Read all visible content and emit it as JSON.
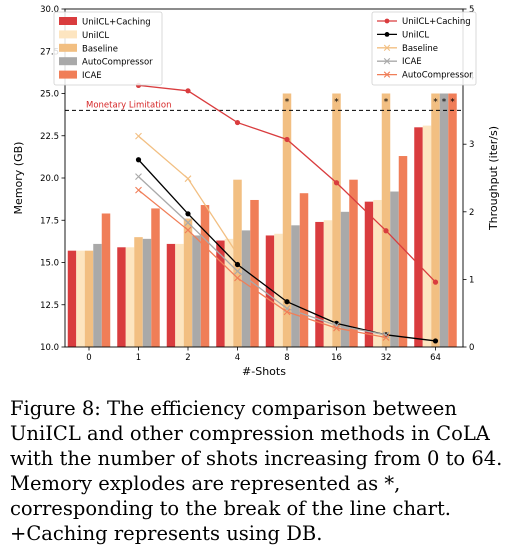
{
  "chart_data": {
    "type": "bar",
    "xlabel": "#-Shots",
    "ylabel": "Memory (GB)",
    "y2label": "Throughput (iter/s)",
    "categories": [
      "0",
      "1",
      "2",
      "4",
      "8",
      "16",
      "32",
      "64"
    ],
    "ylim": [
      10.0,
      30.0
    ],
    "y_ticks": [
      "10.0",
      "12.5",
      "15.0",
      "17.5",
      "20.0",
      "22.5",
      "25.0",
      "27.5",
      "30.0"
    ],
    "y2lim": [
      0,
      5
    ],
    "y2_ticks": [
      "0",
      "1",
      "2",
      "3",
      "4",
      "5"
    ],
    "limit_line": {
      "value": 24.0,
      "label": "Monetary Limitation",
      "color": "#d62728"
    },
    "explode_marker": "*",
    "bar_series": [
      {
        "name": "UniICL+Caching",
        "color": "#d93c3e",
        "values": [
          15.7,
          15.9,
          16.1,
          16.3,
          16.6,
          17.4,
          18.6,
          23.0
        ]
      },
      {
        "name": "UniICL",
        "color": "#fde5c0",
        "values": [
          15.7,
          15.9,
          16.1,
          16.4,
          16.7,
          17.5,
          18.7,
          23.1
        ]
      },
      {
        "name": "Baseline",
        "color": "#f2bf82",
        "values": [
          15.7,
          16.5,
          17.6,
          19.9,
          null,
          null,
          null,
          null
        ]
      },
      {
        "name": "AutoCompressor",
        "color": "#a9a9a9",
        "values": [
          16.1,
          16.4,
          16.6,
          16.9,
          17.2,
          18.0,
          19.2,
          null
        ]
      },
      {
        "name": "ICAE",
        "color": "#f07e58",
        "values": [
          17.9,
          18.2,
          18.4,
          18.7,
          19.1,
          19.9,
          21.3,
          null
        ]
      }
    ],
    "exploded": [
      {
        "category": "8",
        "series": "Baseline"
      },
      {
        "category": "16",
        "series": "Baseline"
      },
      {
        "category": "32",
        "series": "Baseline"
      },
      {
        "category": "64",
        "series": "Baseline"
      },
      {
        "category": "64",
        "series": "AutoCompressor"
      },
      {
        "category": "64",
        "series": "ICAE"
      }
    ],
    "line_series": [
      {
        "name": "UniICL+Caching",
        "color": "#d93c3e",
        "marker": "circle",
        "x": [
          "1",
          "2",
          "4",
          "8",
          "16",
          "32",
          "64"
        ],
        "values": [
          3.87,
          3.79,
          3.32,
          3.07,
          2.43,
          1.72,
          0.96
        ]
      },
      {
        "name": "UniICL",
        "color": "#000000",
        "marker": "circle",
        "x": [
          "1",
          "2",
          "4",
          "8",
          "16",
          "32",
          "64"
        ],
        "values": [
          2.77,
          1.97,
          1.22,
          0.67,
          0.35,
          0.18,
          0.09
        ]
      },
      {
        "name": "Baseline",
        "color": "#f2bf82",
        "marker": "x",
        "x": [
          "1",
          "2",
          "4"
        ],
        "values": [
          3.12,
          2.49,
          1.37
        ]
      },
      {
        "name": "ICAE",
        "color": "#a9a9a9",
        "marker": "x",
        "x": [
          "1",
          "2",
          "4",
          "8",
          "16",
          "32"
        ],
        "values": [
          2.52,
          1.84,
          1.12,
          0.57,
          0.32,
          0.18
        ]
      },
      {
        "name": "AutoCompressor",
        "color": "#f07e58",
        "marker": "x",
        "x": [
          "1",
          "2",
          "4",
          "8",
          "16",
          "32"
        ],
        "values": [
          2.32,
          1.73,
          1.02,
          0.52,
          0.28,
          0.14
        ]
      }
    ]
  },
  "caption": "Figure 8: The efficiency comparison between UniICL and other compression methods in CoLA with the number of shots increasing from 0 to 64. Memory explodes are represented as *, corresponding to the break of the line chart. +Caching represents using DB."
}
